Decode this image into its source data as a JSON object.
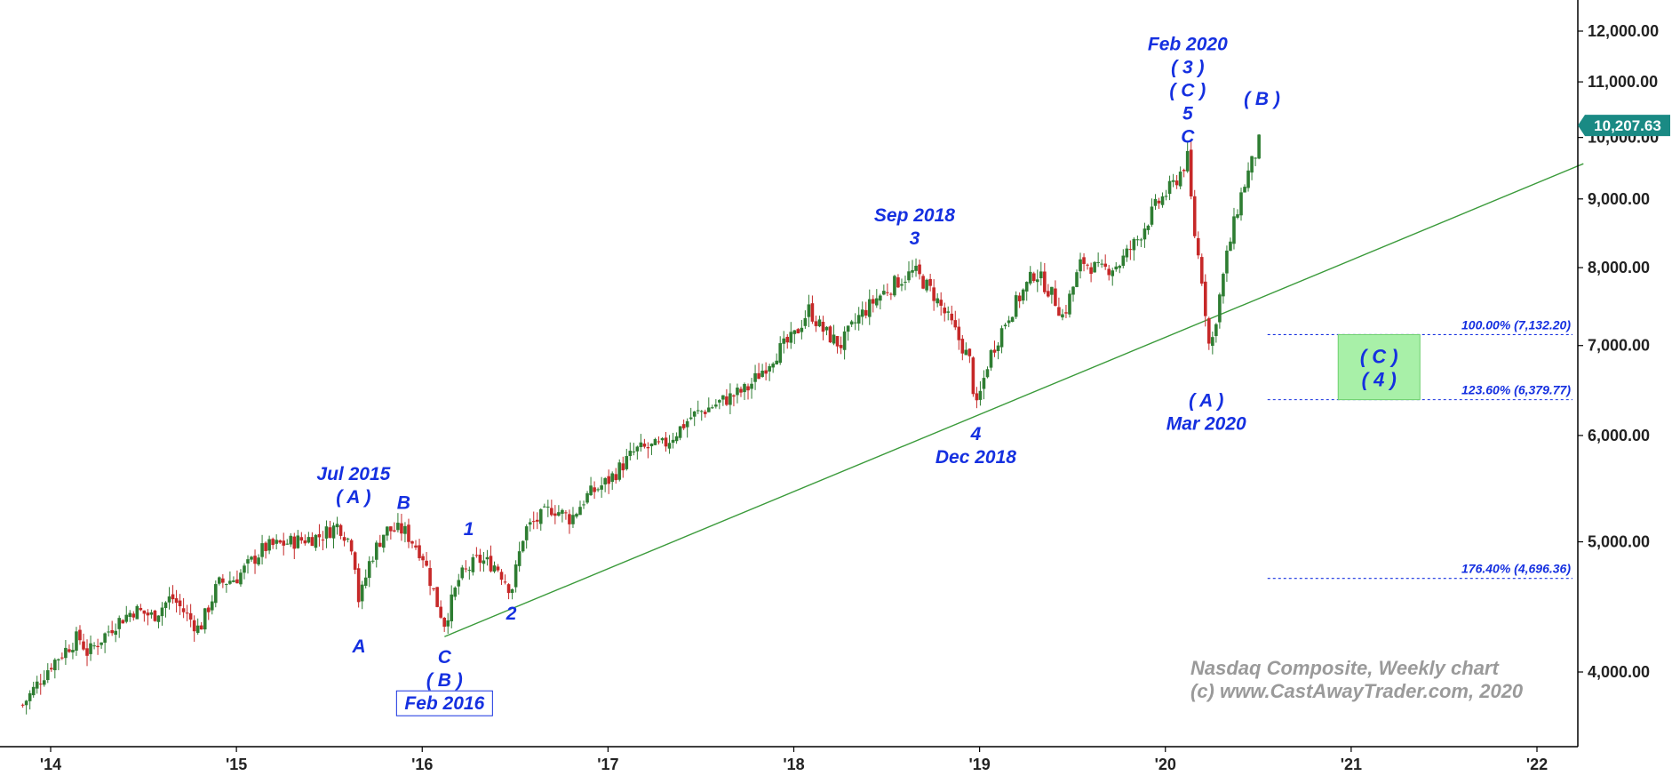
{
  "chart_data": {
    "type": "candlestick",
    "title": "Nasdaq Composite, Weekly chart",
    "copyright": "(c) www.CastAwayTrader.com, 2020",
    "y_scale": "log",
    "ylim": [
      3550,
      12650
    ],
    "xlim": [
      2013.85,
      2022.25
    ],
    "y_ticks": [
      {
        "value": 4000,
        "label": "4,000.00"
      },
      {
        "value": 5000,
        "label": "5,000.00"
      },
      {
        "value": 6000,
        "label": "6,000.00"
      },
      {
        "value": 7000,
        "label": "7,000.00"
      },
      {
        "value": 8000,
        "label": "8,000.00"
      },
      {
        "value": 9000,
        "label": "9,000.00"
      },
      {
        "value": 10000,
        "label": "10,000.00"
      },
      {
        "value": 11000,
        "label": "11,000.00"
      },
      {
        "value": 12000,
        "label": "12,000.00"
      }
    ],
    "x_ticks": [
      {
        "value": 2014,
        "label": "'14"
      },
      {
        "value": 2015,
        "label": "'15"
      },
      {
        "value": 2016,
        "label": "'16"
      },
      {
        "value": 2017,
        "label": "'17"
      },
      {
        "value": 2018,
        "label": "'18"
      },
      {
        "value": 2019,
        "label": "'19"
      },
      {
        "value": 2020,
        "label": "'20"
      },
      {
        "value": 2021,
        "label": "'21"
      },
      {
        "value": 2022,
        "label": "'22"
      }
    ],
    "last_value": {
      "value": 10207.63,
      "label": "10,207.63"
    },
    "price_path": [
      [
        2013.85,
        3780
      ],
      [
        2014.0,
        4050
      ],
      [
        2014.15,
        4250
      ],
      [
        2014.2,
        4130
      ],
      [
        2014.35,
        4350
      ],
      [
        2014.45,
        4450
      ],
      [
        2014.55,
        4400
      ],
      [
        2014.65,
        4550
      ],
      [
        2014.8,
        4300
      ],
      [
        2014.9,
        4650
      ],
      [
        2015.0,
        4700
      ],
      [
        2015.15,
        4950
      ],
      [
        2015.3,
        5000
      ],
      [
        2015.45,
        5050
      ],
      [
        2015.55,
        5150
      ],
      [
        2015.63,
        4950
      ],
      [
        2015.66,
        4500
      ],
      [
        2015.72,
        4850
      ],
      [
        2015.8,
        5100
      ],
      [
        2015.9,
        5100
      ],
      [
        2016.0,
        4900
      ],
      [
        2016.08,
        4500
      ],
      [
        2016.12,
        4350
      ],
      [
        2016.2,
        4700
      ],
      [
        2016.3,
        4850
      ],
      [
        2016.4,
        4800
      ],
      [
        2016.48,
        4600
      ],
      [
        2016.55,
        5100
      ],
      [
        2016.7,
        5300
      ],
      [
        2016.8,
        5200
      ],
      [
        2016.88,
        5400
      ],
      [
        2017.0,
        5550
      ],
      [
        2017.15,
        5850
      ],
      [
        2017.3,
        5900
      ],
      [
        2017.45,
        6200
      ],
      [
        2017.6,
        6350
      ],
      [
        2017.75,
        6500
      ],
      [
        2017.9,
        6900
      ],
      [
        2018.0,
        7100
      ],
      [
        2018.08,
        7450
      ],
      [
        2018.15,
        7200
      ],
      [
        2018.25,
        7000
      ],
      [
        2018.35,
        7350
      ],
      [
        2018.45,
        7600
      ],
      [
        2018.55,
        7800
      ],
      [
        2018.65,
        7950
      ],
      [
        2018.75,
        7650
      ],
      [
        2018.85,
        7250
      ],
      [
        2018.95,
        6800
      ],
      [
        2018.98,
        6250
      ],
      [
        2019.05,
        6850
      ],
      [
        2019.15,
        7350
      ],
      [
        2019.3,
        7950
      ],
      [
        2019.4,
        7600
      ],
      [
        2019.45,
        7350
      ],
      [
        2019.55,
        8100
      ],
      [
        2019.65,
        7950
      ],
      [
        2019.75,
        8050
      ],
      [
        2019.85,
        8400
      ],
      [
        2019.95,
        8900
      ],
      [
        2020.05,
        9250
      ],
      [
        2020.12,
        9650
      ],
      [
        2020.15,
        8600
      ],
      [
        2020.2,
        7800
      ],
      [
        2020.24,
        6900
      ],
      [
        2020.28,
        7450
      ],
      [
        2020.33,
        8150
      ],
      [
        2020.4,
        9000
      ],
      [
        2020.45,
        9450
      ],
      [
        2020.5,
        9850
      ],
      [
        2020.52,
        10207.63
      ]
    ],
    "trendline": {
      "from": [
        2016.12,
        4250
      ],
      "to": [
        2022.25,
        9560
      ]
    },
    "fib_levels": [
      {
        "value": 7132.2,
        "label": "100.00% (7,132.20)"
      },
      {
        "value": 6379.77,
        "label": "123.60% (6,379.77)"
      },
      {
        "value": 4696.36,
        "label": "176.40% (4,696.36)"
      }
    ],
    "target_box": {
      "x_range": [
        2020.93,
        2021.37
      ],
      "y_range": [
        6379.77,
        7132.2
      ],
      "color": "#a8f0a8",
      "lines": [
        "( C )",
        "( 4 )"
      ]
    },
    "annotations": [
      {
        "x": 2015.66,
        "y": 4330,
        "lines": [
          "A"
        ],
        "anchor": "below"
      },
      {
        "x": 2015.63,
        "y": 5230,
        "lines": [
          "Jul 2015",
          "( A )"
        ],
        "anchor": "above"
      },
      {
        "x": 2015.9,
        "y": 5180,
        "lines": [
          "B"
        ],
        "anchor": "above"
      },
      {
        "x": 2016.12,
        "y": 4250,
        "lines": [
          "C",
          "( B )",
          "Feb 2016"
        ],
        "anchor": "below",
        "boxed_last": true
      },
      {
        "x": 2016.25,
        "y": 4950,
        "lines": [
          "1"
        ],
        "anchor": "above"
      },
      {
        "x": 2016.48,
        "y": 4580,
        "lines": [
          "2"
        ],
        "anchor": "below"
      },
      {
        "x": 2018.65,
        "y": 8150,
        "lines": [
          "Sep 2018",
          "3"
        ],
        "anchor": "above"
      },
      {
        "x": 2018.98,
        "y": 6230,
        "lines": [
          "4",
          "Dec 2018"
        ],
        "anchor": "below"
      },
      {
        "x": 2020.12,
        "y": 9700,
        "lines": [
          "Feb 2020",
          "( 3 )",
          "( C )",
          "5",
          "C"
        ],
        "anchor": "above"
      },
      {
        "x": 2020.22,
        "y": 6600,
        "lines": [
          "( A )",
          "Mar 2020"
        ],
        "anchor": "below"
      },
      {
        "x": 2020.52,
        "y": 10350,
        "lines": [
          "( B )"
        ],
        "anchor": "above"
      }
    ],
    "colors": {
      "up": "#2e7d32",
      "down": "#c62828",
      "trendline": "#3a9a3a",
      "fib": "#1530e0",
      "annotation": "#1530e0",
      "last_value_bg": "#1a8a84"
    }
  }
}
